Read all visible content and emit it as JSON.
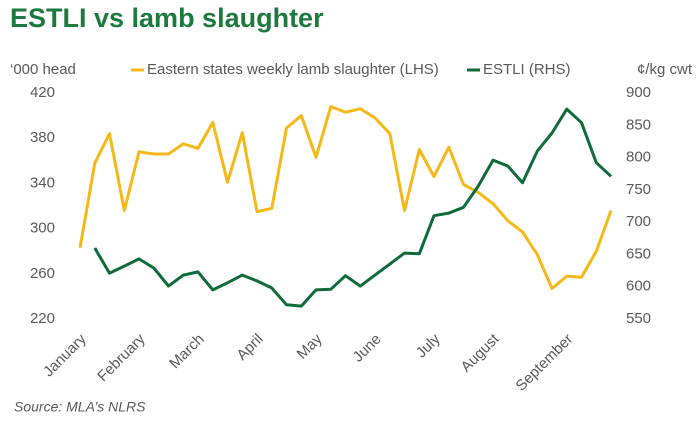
{
  "chart_data": {
    "type": "line",
    "title": "ESTLI vs lamb slaughter",
    "ylabel": "‘000 head",
    "y2label": "¢/kg cwt",
    "source": "Source: MLA’s NLRS",
    "categories": [
      "January",
      null,
      null,
      null,
      "February",
      null,
      null,
      null,
      "March",
      null,
      null,
      null,
      "April",
      null,
      null,
      null,
      "May",
      null,
      null,
      null,
      "June",
      null,
      null,
      null,
      "July",
      null,
      null,
      null,
      "August",
      null,
      null,
      null,
      null,
      "September",
      null,
      null,
      null
    ],
    "series": [
      {
        "name": "Eastern states weekly lamb slaughter (LHS)",
        "color": "#f5b817",
        "axis": "y",
        "values": [
          283,
          358,
          384,
          316,
          368,
          366,
          366,
          375,
          371,
          394,
          341,
          385,
          315,
          318,
          389,
          400,
          363,
          408,
          403,
          406,
          398,
          384,
          316,
          370,
          346,
          372,
          339,
          332,
          322,
          307,
          297,
          277,
          247,
          258,
          257,
          280,
          316
        ]
      },
      {
        "name": "ESTLI (RHS)",
        "color": "#0f6b3a",
        "axis": "y2",
        "values": [
          null,
          660,
          621,
          632,
          643,
          629,
          601,
          618,
          623,
          595,
          606,
          618,
          609,
          598,
          572,
          570,
          595,
          596,
          617,
          601,
          618,
          635,
          652,
          651,
          710,
          714,
          723,
          756,
          796,
          787,
          761,
          810,
          838,
          875,
          854,
          792,
          771
        ]
      }
    ],
    "ylim": [
      220,
      420
    ],
    "yticks": [
      220,
      260,
      300,
      340,
      380,
      420
    ],
    "y2lim": [
      550,
      900
    ],
    "y2ticks": [
      550,
      600,
      650,
      700,
      750,
      800,
      850,
      900
    ],
    "grid": false,
    "legend": "top"
  }
}
